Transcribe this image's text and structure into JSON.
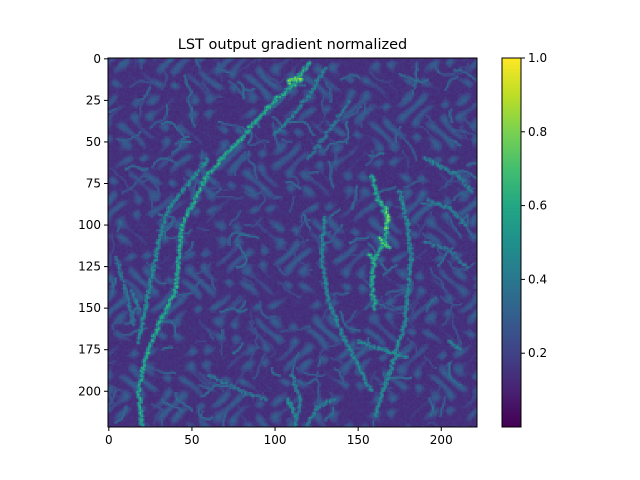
{
  "chart_data": {
    "type": "heatmap",
    "title": "LST output gradient normalized",
    "xlabel": "",
    "ylabel": "",
    "image_size": [
      222,
      222
    ],
    "xlim": [
      0,
      222
    ],
    "ylim": [
      222,
      0
    ],
    "x_ticks": [
      0,
      50,
      100,
      150,
      200
    ],
    "y_ticks": [
      0,
      25,
      50,
      75,
      100,
      125,
      150,
      175,
      200
    ],
    "colormap": "viridis",
    "colorbar": {
      "range": [
        0,
        1.0
      ],
      "ticks": [
        0.2,
        0.4,
        0.6,
        0.8,
        1.0
      ],
      "tick_labels": [
        "0.2",
        "0.4",
        "0.6",
        "0.8",
        "1.0"
      ]
    },
    "background_value": 0.12,
    "features": [
      {
        "kind": "ridge",
        "value": 0.7,
        "points": [
          [
            120,
            2
          ],
          [
            112,
            15
          ],
          [
            100,
            25
          ],
          [
            88,
            38
          ],
          [
            78,
            50
          ],
          [
            68,
            60
          ],
          [
            58,
            72
          ],
          [
            50,
            88
          ],
          [
            44,
            100
          ],
          [
            42,
            120
          ],
          [
            40,
            140
          ],
          [
            34,
            152
          ],
          [
            28,
            165
          ],
          [
            22,
            180
          ],
          [
            18,
            200
          ],
          [
            20,
            222
          ]
        ]
      },
      {
        "kind": "ridge",
        "value": 0.9,
        "points": [
          [
            108,
            14
          ],
          [
            112,
            12
          ],
          [
            116,
            13
          ]
        ]
      },
      {
        "kind": "ridge",
        "value": 0.55,
        "points": [
          [
            60,
            60
          ],
          [
            48,
            75
          ],
          [
            36,
            90
          ],
          [
            30,
            110
          ],
          [
            26,
            130
          ],
          [
            22,
            150
          ],
          [
            18,
            170
          ]
        ]
      },
      {
        "kind": "ridge",
        "value": 0.5,
        "points": [
          [
            130,
            5
          ],
          [
            122,
            20
          ],
          [
            110,
            35
          ],
          [
            100,
            45
          ]
        ]
      },
      {
        "kind": "ridge",
        "value": 0.7,
        "points": [
          [
            158,
            70
          ],
          [
            162,
            85
          ],
          [
            168,
            95
          ],
          [
            166,
            110
          ],
          [
            160,
            120
          ],
          [
            158,
            135
          ],
          [
            160,
            150
          ]
        ]
      },
      {
        "kind": "ridge",
        "value": 0.9,
        "points": [
          [
            167,
            90
          ],
          [
            168,
            96
          ],
          [
            167,
            102
          ]
        ]
      },
      {
        "kind": "ridge",
        "value": 0.85,
        "points": [
          [
            162,
            108
          ],
          [
            166,
            111
          ],
          [
            169,
            113
          ]
        ]
      },
      {
        "kind": "ridge",
        "value": 0.75,
        "points": [
          [
            157,
            118
          ],
          [
            159,
            122
          ]
        ]
      },
      {
        "kind": "ridge",
        "value": 0.55,
        "points": [
          [
            175,
            80
          ],
          [
            180,
            100
          ],
          [
            182,
            120
          ],
          [
            180,
            140
          ],
          [
            178,
            160
          ],
          [
            172,
            180
          ],
          [
            165,
            200
          ],
          [
            160,
            215
          ]
        ]
      },
      {
        "kind": "ridge",
        "value": 0.5,
        "points": [
          [
            190,
            60
          ],
          [
            200,
            65
          ],
          [
            210,
            70
          ],
          [
            218,
            80
          ]
        ]
      },
      {
        "kind": "ridge",
        "value": 0.5,
        "points": [
          [
            192,
            85
          ],
          [
            205,
            90
          ],
          [
            215,
            100
          ]
        ]
      },
      {
        "kind": "ridge",
        "value": 0.45,
        "points": [
          [
            190,
            110
          ],
          [
            205,
            115
          ],
          [
            215,
            125
          ]
        ]
      },
      {
        "kind": "ridge",
        "value": 0.55,
        "points": [
          [
            130,
            95
          ],
          [
            128,
            120
          ],
          [
            132,
            145
          ],
          [
            140,
            165
          ],
          [
            150,
            185
          ],
          [
            158,
            200
          ]
        ]
      },
      {
        "kind": "ridge",
        "value": 0.55,
        "points": [
          [
            150,
            170
          ],
          [
            165,
            175
          ],
          [
            180,
            180
          ]
        ]
      },
      {
        "kind": "ridge",
        "value": 0.5,
        "points": [
          [
            110,
            190
          ],
          [
            115,
            205
          ],
          [
            112,
            222
          ]
        ]
      },
      {
        "kind": "ridge",
        "value": 0.6,
        "points": [
          [
            108,
            205
          ],
          [
            112,
            215
          ]
        ]
      },
      {
        "kind": "ridge",
        "value": 0.45,
        "points": [
          [
            120,
            60
          ],
          [
            135,
            40
          ],
          [
            145,
            25
          ]
        ]
      },
      {
        "kind": "ridge",
        "value": 0.45,
        "points": [
          [
            5,
            120
          ],
          [
            10,
            140
          ],
          [
            15,
            160
          ]
        ]
      },
      {
        "kind": "ridge",
        "value": 0.5,
        "points": [
          [
            14,
            140
          ],
          [
            18,
            150
          ]
        ]
      },
      {
        "kind": "ridge",
        "value": 0.5,
        "points": [
          [
            205,
            170
          ],
          [
            212,
            175
          ]
        ]
      },
      {
        "kind": "ridge",
        "value": 0.45,
        "points": [
          [
            60,
            190
          ],
          [
            80,
            200
          ],
          [
            95,
            205
          ]
        ]
      },
      {
        "kind": "ridge",
        "value": 0.5,
        "points": [
          [
            120,
            220
          ],
          [
            125,
            210
          ],
          [
            135,
            205
          ]
        ]
      }
    ]
  }
}
